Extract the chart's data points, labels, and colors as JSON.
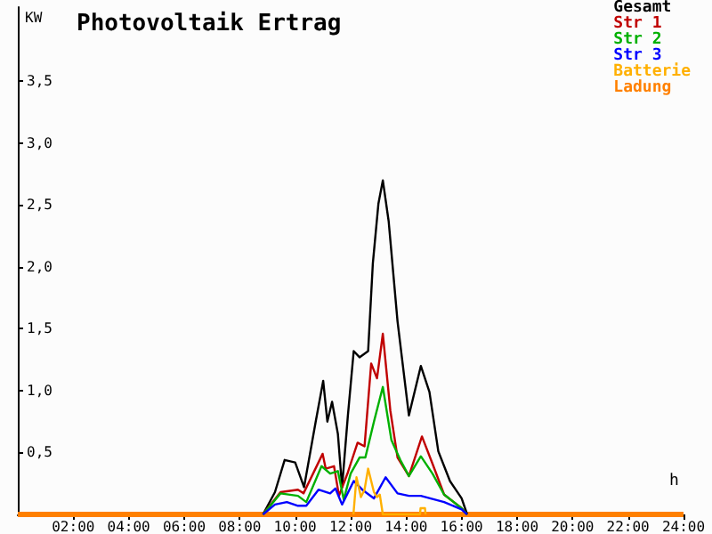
{
  "chart_data": {
    "type": "line",
    "title": "Photovoltaik Ertrag",
    "xlabel": "h",
    "ylabel": "KW",
    "xlim": [
      0,
      24
    ],
    "ylim": [
      0,
      4.1
    ],
    "xticks": [
      {
        "value": 2,
        "label": "02:00"
      },
      {
        "value": 4,
        "label": "04:00"
      },
      {
        "value": 6,
        "label": "06:00"
      },
      {
        "value": 8,
        "label": "08:00"
      },
      {
        "value": 10,
        "label": "10:00"
      },
      {
        "value": 12,
        "label": "12:00"
      },
      {
        "value": 14,
        "label": "14:00"
      },
      {
        "value": 16,
        "label": "16:00"
      },
      {
        "value": 18,
        "label": "18:00"
      },
      {
        "value": 20,
        "label": "20:00"
      },
      {
        "value": 22,
        "label": "22:00"
      },
      {
        "value": 24,
        "label": "24:00"
      }
    ],
    "yticks": [
      {
        "value": 0.5,
        "label": "0,5"
      },
      {
        "value": 1,
        "label": "1,0"
      },
      {
        "value": 1.5,
        "label": "1,5"
      },
      {
        "value": 2,
        "label": "2,0"
      },
      {
        "value": 2.5,
        "label": "2,5"
      },
      {
        "value": 3,
        "label": "3,0"
      },
      {
        "value": 3.5,
        "label": "3,5"
      }
    ],
    "grid": false,
    "legend": "top right",
    "marker": "none",
    "line_style": "solid",
    "series": [
      {
        "name": "Gesamt",
        "color": "#000000",
        "x": [
          8.84,
          9.27,
          9.62,
          10.0,
          10.32,
          10.74,
          11.01,
          11.16,
          11.33,
          11.54,
          11.69,
          11.9,
          12.11,
          12.32,
          12.63,
          12.8,
          13.0,
          13.16,
          13.37,
          13.69,
          14.1,
          14.53,
          14.84,
          15.16,
          15.58,
          16.0,
          16.2
        ],
        "values": [
          0,
          0.18,
          0.44,
          0.42,
          0.22,
          0.75,
          1.08,
          0.75,
          0.91,
          0.65,
          0.22,
          0.8,
          1.32,
          1.27,
          1.32,
          2.03,
          2.51,
          2.7,
          2.37,
          1.56,
          0.8,
          1.2,
          0.99,
          0.51,
          0.27,
          0.13,
          0
        ]
      },
      {
        "name": "Str 1",
        "color": "#c00000",
        "x": [
          8.84,
          9.47,
          10.1,
          10.3,
          10.99,
          11.1,
          11.4,
          11.58,
          11.9,
          12.0,
          12.25,
          12.5,
          12.74,
          12.95,
          13.16,
          13.43,
          13.69,
          14.1,
          14.57,
          14.95,
          15.37,
          16.0,
          16.2
        ],
        "values": [
          0,
          0.18,
          0.2,
          0.17,
          0.49,
          0.37,
          0.39,
          0.15,
          0.34,
          0.41,
          0.58,
          0.55,
          1.22,
          1.1,
          1.46,
          0.84,
          0.46,
          0.31,
          0.63,
          0.41,
          0.16,
          0.05,
          0
        ]
      },
      {
        "name": "Str 2",
        "color": "#00b000",
        "x": [
          8.84,
          9.47,
          10.1,
          10.4,
          10.95,
          11.26,
          11.54,
          11.75,
          12.0,
          12.32,
          12.53,
          12.84,
          13.16,
          13.47,
          13.79,
          14.1,
          14.53,
          14.95,
          15.37,
          16.0,
          16.2
        ],
        "values": [
          0,
          0.17,
          0.15,
          0.1,
          0.39,
          0.33,
          0.35,
          0.12,
          0.33,
          0.46,
          0.46,
          0.75,
          1.03,
          0.6,
          0.44,
          0.31,
          0.47,
          0.33,
          0.16,
          0.05,
          0
        ]
      },
      {
        "name": "Str 3",
        "color": "#0000ff",
        "x": [
          8.84,
          9.27,
          9.7,
          10.1,
          10.4,
          10.84,
          11.26,
          11.45,
          11.69,
          12.11,
          12.42,
          12.84,
          13.26,
          13.69,
          14.1,
          14.53,
          15.37,
          16.0,
          16.2
        ],
        "values": [
          0,
          0.08,
          0.1,
          0.07,
          0.07,
          0.2,
          0.17,
          0.21,
          0.08,
          0.27,
          0.2,
          0.13,
          0.3,
          0.17,
          0.15,
          0.15,
          0.1,
          0.04,
          0
        ]
      },
      {
        "name": "Batterie",
        "color": "#ffb000",
        "x": [
          12.1,
          12.21,
          12.37,
          12.5,
          12.63,
          12.84,
          12.95,
          13.05,
          13.16,
          14.5,
          14.52,
          14.68,
          14.7
        ],
        "values": [
          0,
          0.3,
          0.14,
          0.2,
          0.37,
          0.18,
          0.14,
          0.16,
          0,
          0,
          0.05,
          0.05,
          0
        ]
      },
      {
        "name": "Ladung",
        "color": "#ff8000",
        "x": [
          0,
          24
        ],
        "values": [
          0,
          0
        ]
      }
    ]
  }
}
